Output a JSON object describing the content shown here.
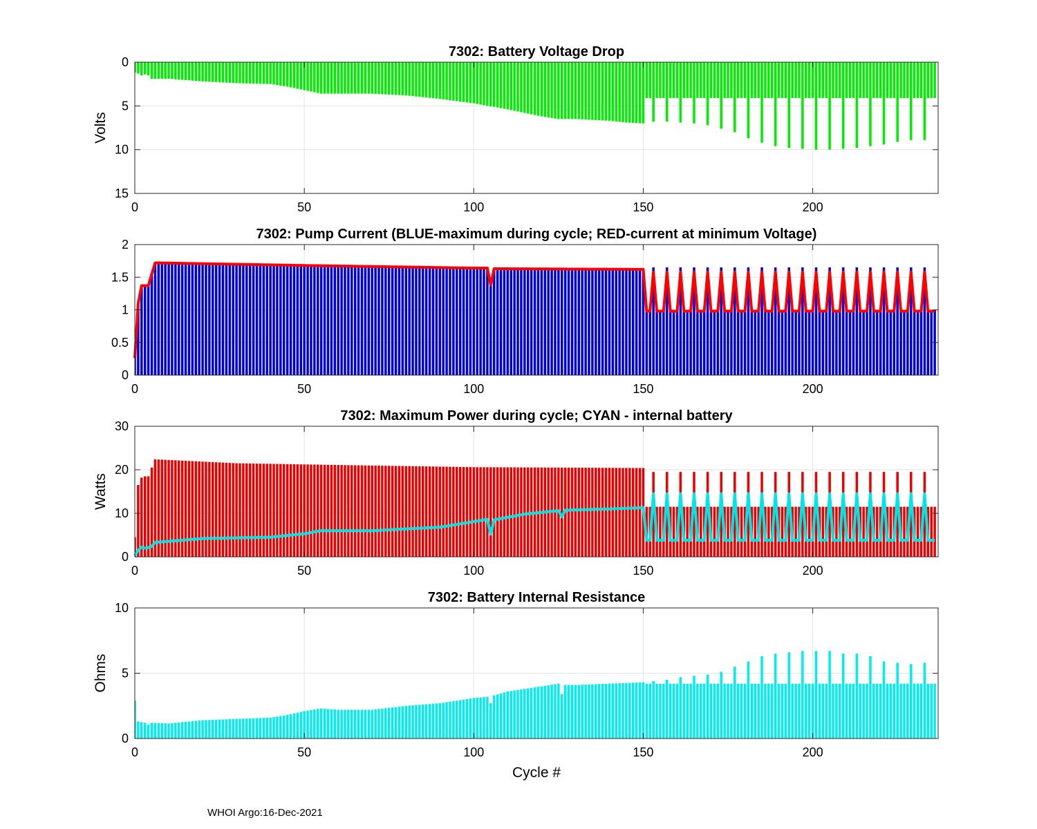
{
  "chart_data": [
    {
      "type": "bar",
      "title": "7302: Battery Voltage Drop",
      "ylabel": "Volts",
      "xlabel": "",
      "xlim": [
        0,
        237
      ],
      "ylim": [
        0,
        15
      ],
      "y_reversed": true,
      "xticks": [
        "0",
        "50",
        "100",
        "150",
        "200"
      ],
      "yticks": [
        "0",
        "5",
        "10",
        "15"
      ],
      "grid": true,
      "series": [
        {
          "name": "Battery Voltage Drop",
          "color": "#00ee00",
          "anchors_x": [
            0,
            1,
            2,
            3,
            4,
            5,
            10,
            20,
            30,
            40,
            45,
            50,
            55,
            60,
            70,
            80,
            90,
            100,
            104,
            106,
            110,
            115,
            120,
            125,
            130,
            140,
            145,
            150
          ],
          "anchors_y": [
            1.2,
            1.3,
            1.5,
            1.4,
            1.5,
            1.9,
            1.9,
            2.2,
            2.4,
            2.5,
            2.8,
            3.2,
            3.6,
            3.6,
            3.6,
            3.8,
            4.2,
            4.7,
            5.0,
            5.1,
            5.4,
            5.8,
            6.2,
            6.5,
            6.5,
            6.7,
            6.9,
            7.0
          ],
          "tail_base": 4.1,
          "tail_peak_x": [
            153,
            157,
            161,
            165,
            169,
            173,
            177,
            181,
            185,
            189,
            193,
            197,
            201,
            205,
            209,
            213,
            217,
            221,
            225,
            229,
            233
          ],
          "tail_peak_y": [
            6.8,
            6.8,
            6.9,
            7.0,
            7.2,
            7.6,
            8.0,
            8.7,
            9.2,
            9.6,
            9.8,
            9.9,
            10.0,
            10.0,
            9.9,
            9.8,
            9.6,
            9.4,
            9.1,
            8.9,
            8.9
          ]
        }
      ]
    },
    {
      "type": "bar",
      "title": "7302: Pump Current (BLUE-maximum during cycle; RED-current at minimum Voltage)",
      "ylabel": "",
      "xlabel": "",
      "xlim": [
        0,
        237
      ],
      "ylim": [
        0,
        2
      ],
      "xticks": [
        "0",
        "50",
        "100",
        "150",
        "200"
      ],
      "yticks": [
        "0",
        "0.5",
        "1",
        "1.5",
        "2"
      ],
      "grid": true,
      "series": [
        {
          "name": "maximum during cycle",
          "color": "#0000dd",
          "anchors_x": [
            0,
            1,
            2,
            3,
            4,
            5,
            6,
            50,
            100,
            104,
            105,
            106,
            150
          ],
          "anchors_y": [
            0.3,
            1.1,
            1.37,
            1.37,
            1.37,
            1.55,
            1.72,
            1.68,
            1.64,
            1.64,
            1.45,
            1.63,
            1.62
          ],
          "tail_base": 1.0,
          "tail_peak": 1.65
        },
        {
          "name": "current at minimum Voltage",
          "color": "#ff0000",
          "anchors_x": [
            0,
            1,
            2,
            3,
            4,
            5,
            6,
            50,
            100,
            104,
            105,
            106,
            150
          ],
          "anchors_y": [
            0.26,
            1.1,
            1.37,
            1.37,
            1.37,
            1.55,
            1.72,
            1.68,
            1.64,
            1.64,
            1.38,
            1.63,
            1.62
          ],
          "tail_base": 0.98,
          "tail_peak": 1.58
        }
      ]
    },
    {
      "type": "bar",
      "title": "7302: Maximum Power during cycle; CYAN - internal battery",
      "ylabel": "Watts",
      "xlabel": "",
      "xlim": [
        0,
        237
      ],
      "ylim": [
        0,
        30
      ],
      "xticks": [
        "0",
        "50",
        "100",
        "150",
        "200"
      ],
      "yticks": [
        "0",
        "10",
        "20",
        "30"
      ],
      "grid": true,
      "series": [
        {
          "name": "Maximum Power",
          "color": "#ee0000",
          "anchors_x": [
            0,
            1,
            2,
            3,
            4,
            5,
            6,
            30,
            60,
            100,
            150
          ],
          "anchors_y": [
            4.5,
            16.5,
            18.2,
            18.5,
            18.5,
            20.5,
            22.4,
            21.5,
            21.1,
            20.6,
            20.4
          ],
          "tail_base": 11.5,
          "tail_peak": 19.5
        },
        {
          "name": "internal battery",
          "color": "#00e5e5",
          "anchors_x": [
            0,
            1,
            2,
            3,
            4,
            5,
            6,
            20,
            40,
            50,
            55,
            70,
            90,
            104,
            105,
            106,
            115,
            125,
            126,
            127,
            140,
            150,
            151
          ],
          "anchors_y": [
            0.3,
            1.5,
            2.2,
            2.0,
            2.1,
            2.4,
            3.3,
            4.2,
            4.5,
            5.3,
            6.0,
            6.0,
            6.8,
            8.6,
            5.2,
            8.5,
            9.8,
            10.6,
            9.2,
            10.7,
            11.0,
            11.3,
            11.0
          ],
          "tail_base": 3.8,
          "tail_peak": 14.5
        }
      ]
    },
    {
      "type": "bar",
      "title": "7302: Battery Internal Resistance",
      "ylabel": "Ohms",
      "xlabel": "Cycle #",
      "xlim": [
        0,
        237
      ],
      "ylim": [
        0,
        10
      ],
      "xticks": [
        "0",
        "50",
        "100",
        "150",
        "200"
      ],
      "yticks": [
        "0",
        "5",
        "10"
      ],
      "grid": true,
      "series": [
        {
          "name": "Battery Internal Resistance",
          "color": "#00eeee",
          "anchors_x": [
            0,
            1,
            3,
            4,
            5,
            10,
            20,
            30,
            40,
            45,
            50,
            55,
            60,
            70,
            80,
            90,
            100,
            104,
            105,
            106,
            110,
            120,
            125,
            126,
            127,
            130,
            140,
            150
          ],
          "anchors_y": [
            2.9,
            1.3,
            1.2,
            1.05,
            1.2,
            1.15,
            1.4,
            1.5,
            1.6,
            1.8,
            2.1,
            2.3,
            2.2,
            2.2,
            2.5,
            2.7,
            3.1,
            3.2,
            2.7,
            3.3,
            3.6,
            4.0,
            4.2,
            3.4,
            4.1,
            4.1,
            4.2,
            4.3
          ],
          "tail_base": 4.2,
          "tail_peak_x": [
            153,
            157,
            161,
            165,
            169,
            173,
            177,
            181,
            185,
            189,
            193,
            197,
            201,
            205,
            209,
            213,
            217,
            221,
            225,
            229,
            233
          ],
          "tail_peak_y": [
            4.4,
            4.5,
            4.7,
            4.8,
            4.9,
            5.1,
            5.5,
            5.9,
            6.3,
            6.5,
            6.6,
            6.7,
            6.7,
            6.7,
            6.5,
            6.5,
            6.3,
            5.9,
            5.8,
            5.7,
            5.8
          ]
        }
      ]
    }
  ],
  "footer": {
    "text": "WHOI Argo:16-Dec-2021"
  }
}
